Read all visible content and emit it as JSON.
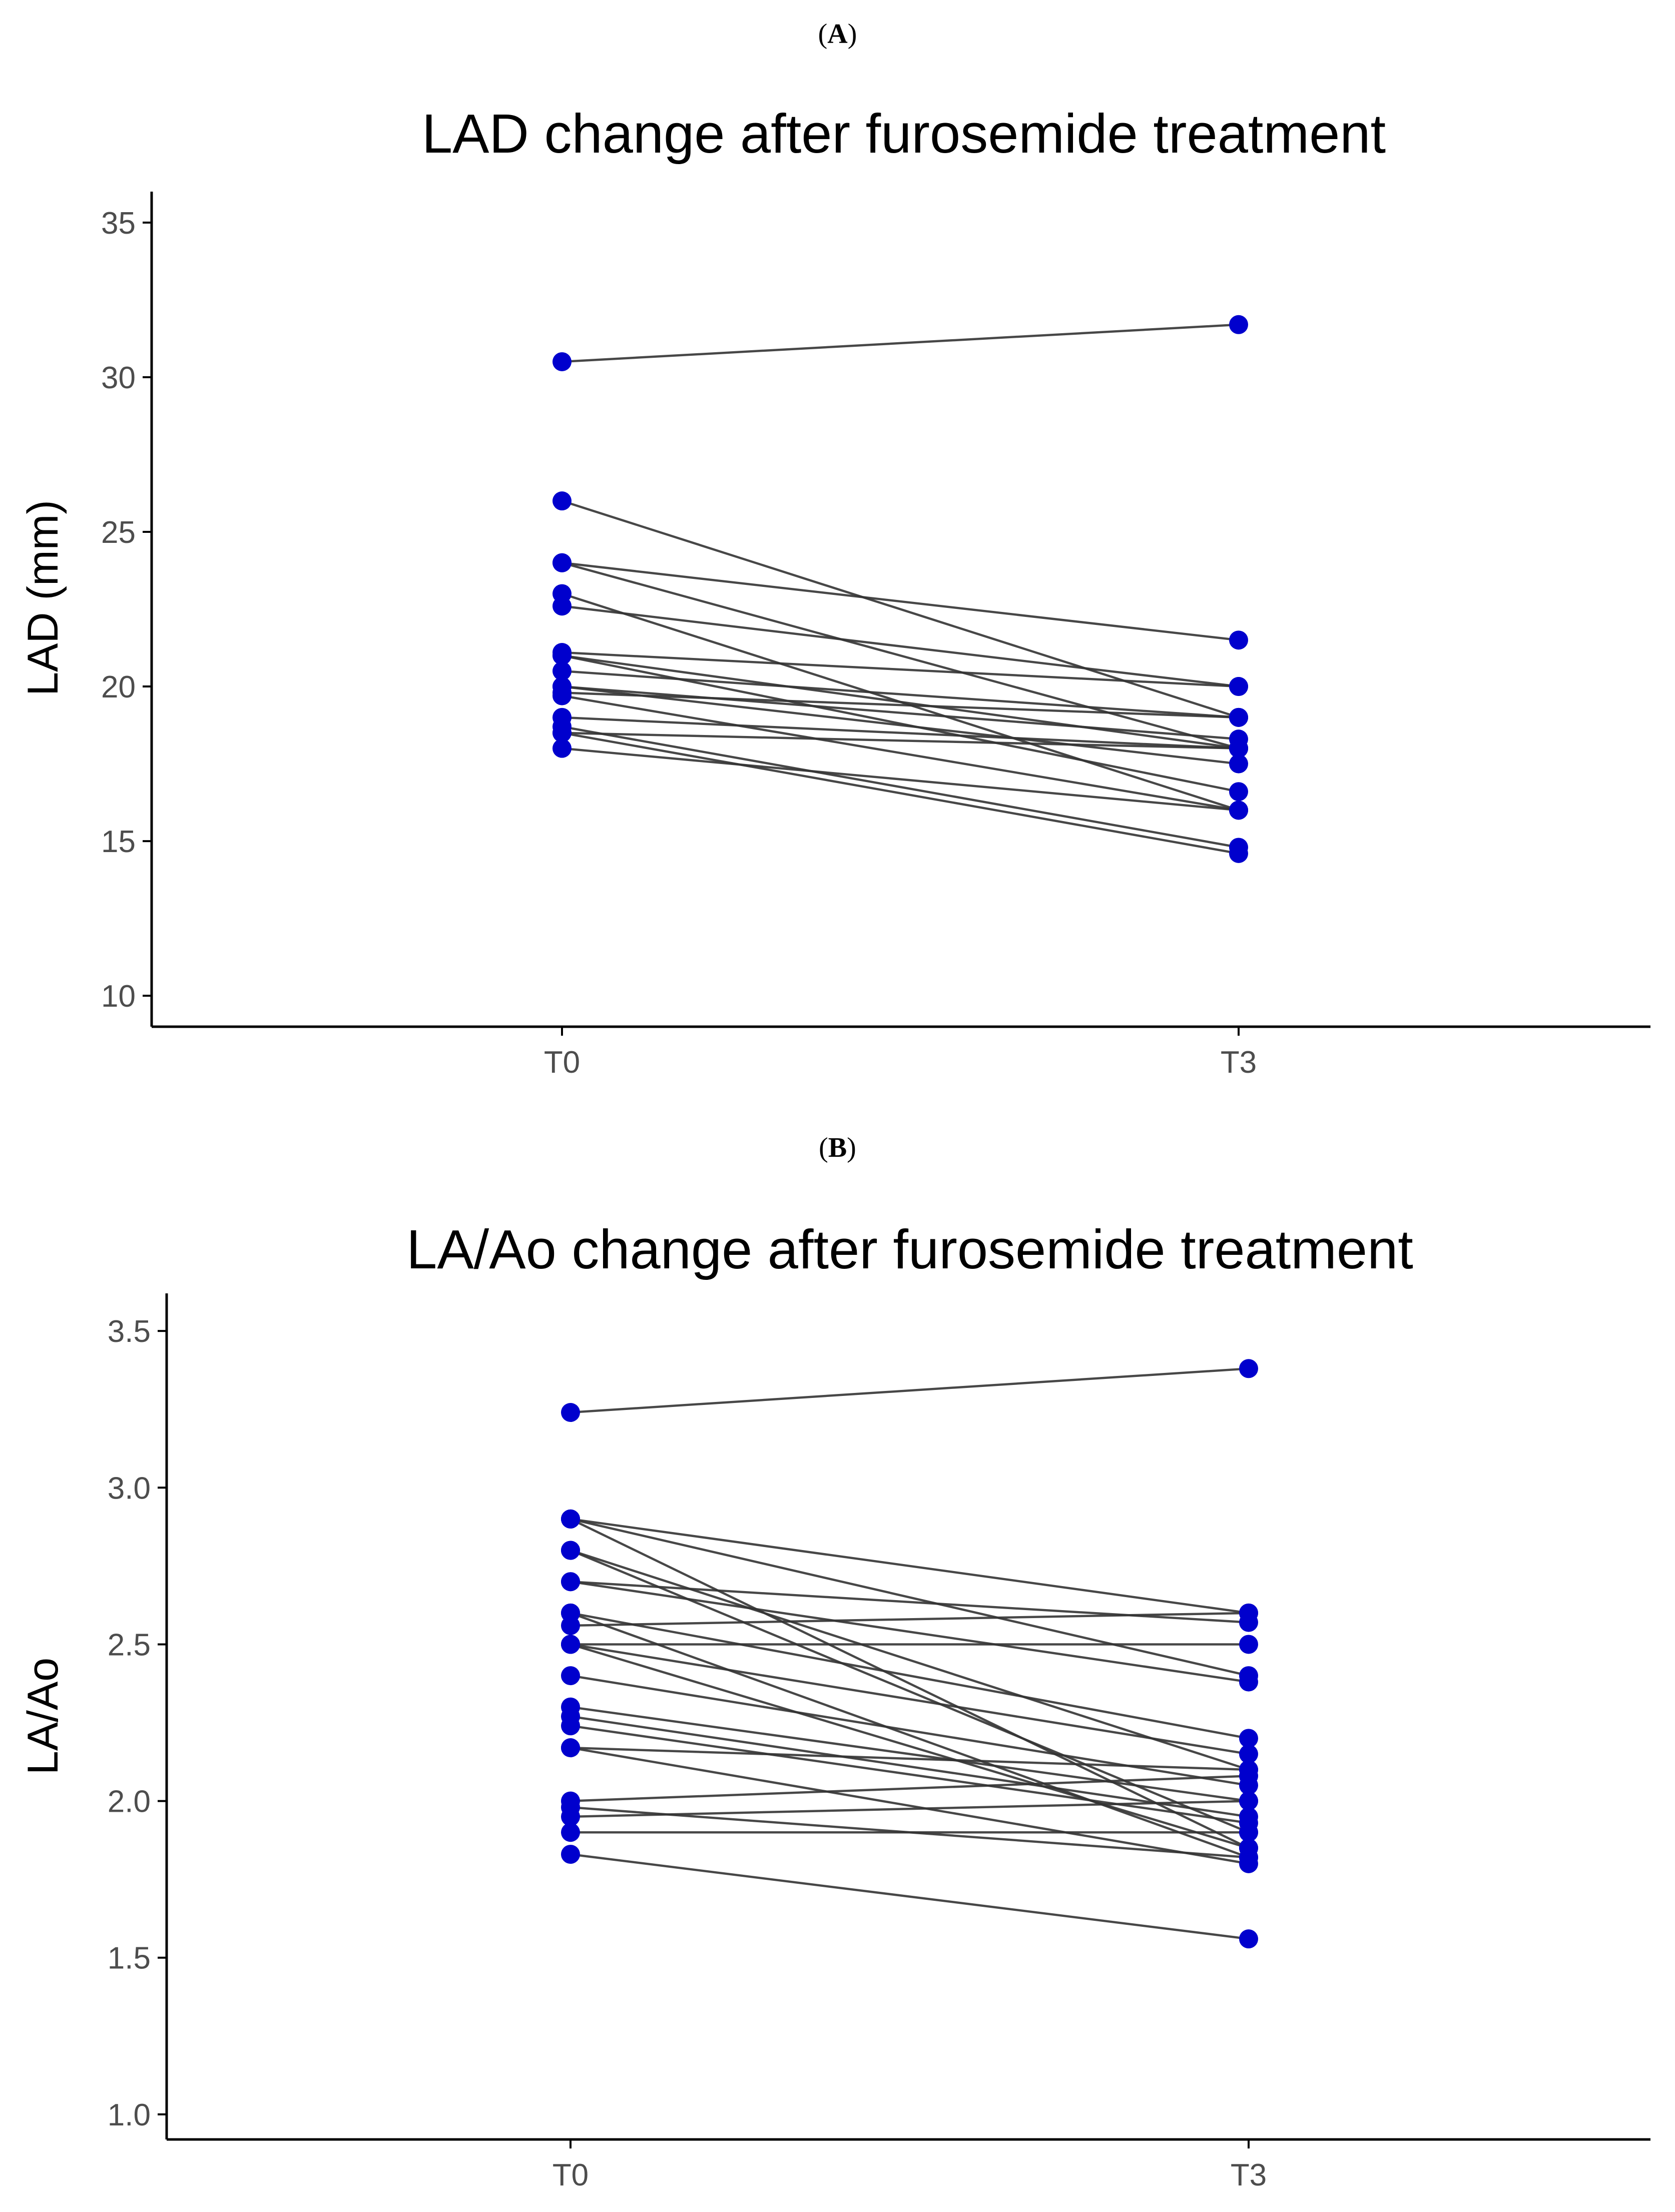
{
  "chart_data": [
    {
      "type": "line",
      "panel_label": "A",
      "title": "LAD change after furosemide treatment",
      "xlabel": "",
      "ylabel": "LAD (mm)",
      "categories": [
        "T0",
        "T3"
      ],
      "ylim": [
        9.0,
        36.0
      ],
      "yticks": [
        10,
        15,
        20,
        25,
        30,
        35
      ],
      "grid": false,
      "point_color": "#0000cd",
      "line_color": "#333333",
      "series": [
        {
          "name": "1",
          "values": [
            30.5,
            31.7
          ]
        },
        {
          "name": "2",
          "values": [
            26.0,
            19.0
          ]
        },
        {
          "name": "3",
          "values": [
            24.0,
            21.5
          ]
        },
        {
          "name": "4",
          "values": [
            24.0,
            18.0
          ]
        },
        {
          "name": "5",
          "values": [
            23.0,
            16.0
          ]
        },
        {
          "name": "6",
          "values": [
            22.6,
            20.0
          ]
        },
        {
          "name": "7",
          "values": [
            21.1,
            20.0
          ]
        },
        {
          "name": "8",
          "values": [
            21.0,
            18.0
          ]
        },
        {
          "name": "9",
          "values": [
            21.0,
            16.6
          ]
        },
        {
          "name": "10",
          "values": [
            20.5,
            19.0
          ]
        },
        {
          "name": "11",
          "values": [
            20.0,
            18.3
          ]
        },
        {
          "name": "12",
          "values": [
            20.0,
            17.5
          ]
        },
        {
          "name": "13",
          "values": [
            19.8,
            19.0
          ]
        },
        {
          "name": "14",
          "values": [
            19.7,
            16.0
          ]
        },
        {
          "name": "15",
          "values": [
            19.0,
            18.0
          ]
        },
        {
          "name": "16",
          "values": [
            18.7,
            14.8
          ]
        },
        {
          "name": "17",
          "values": [
            18.5,
            14.6
          ]
        },
        {
          "name": "18",
          "values": [
            18.5,
            18.0
          ]
        },
        {
          "name": "19",
          "values": [
            18.0,
            16.0
          ]
        }
      ]
    },
    {
      "type": "line",
      "panel_label": "B",
      "title": "LA/Ao change after furosemide treatment",
      "xlabel": "",
      "ylabel": "LA/Ao",
      "categories": [
        "T0",
        "T3"
      ],
      "ylim": [
        0.92,
        3.62
      ],
      "yticks": [
        1.0,
        1.5,
        2.0,
        2.5,
        3.0,
        3.5
      ],
      "ytick_labels": [
        "1.0",
        "1.5",
        "2.0",
        "2.5",
        "3.0",
        "3.5"
      ],
      "grid": false,
      "point_color": "#0000cd",
      "line_color": "#333333",
      "series": [
        {
          "name": "1",
          "values": [
            3.24,
            3.38
          ]
        },
        {
          "name": "2",
          "values": [
            2.9,
            2.6
          ]
        },
        {
          "name": "3",
          "values": [
            2.9,
            2.4
          ]
        },
        {
          "name": "4",
          "values": [
            2.9,
            1.85
          ]
        },
        {
          "name": "5",
          "values": [
            2.8,
            1.9
          ]
        },
        {
          "name": "6",
          "values": [
            2.8,
            2.1
          ]
        },
        {
          "name": "7",
          "values": [
            2.7,
            2.57
          ]
        },
        {
          "name": "8",
          "values": [
            2.7,
            2.38
          ]
        },
        {
          "name": "9",
          "values": [
            2.6,
            2.2
          ]
        },
        {
          "name": "10",
          "values": [
            2.6,
            1.82
          ]
        },
        {
          "name": "11",
          "values": [
            2.56,
            2.6
          ]
        },
        {
          "name": "12",
          "values": [
            2.5,
            2.5
          ]
        },
        {
          "name": "13",
          "values": [
            2.5,
            2.15
          ]
        },
        {
          "name": "14",
          "values": [
            2.5,
            1.85
          ]
        },
        {
          "name": "15",
          "values": [
            2.4,
            2.05
          ]
        },
        {
          "name": "16",
          "values": [
            2.3,
            2.0
          ]
        },
        {
          "name": "17",
          "values": [
            2.27,
            1.95
          ]
        },
        {
          "name": "18",
          "values": [
            2.24,
            1.93
          ]
        },
        {
          "name": "19",
          "values": [
            2.17,
            1.8
          ]
        },
        {
          "name": "20",
          "values": [
            2.17,
            2.1
          ]
        },
        {
          "name": "21",
          "values": [
            2.0,
            2.08
          ]
        },
        {
          "name": "22",
          "values": [
            1.98,
            1.82
          ]
        },
        {
          "name": "23",
          "values": [
            1.95,
            2.0
          ]
        },
        {
          "name": "24",
          "values": [
            1.9,
            1.9
          ]
        },
        {
          "name": "25",
          "values": [
            1.83,
            1.56
          ]
        }
      ]
    }
  ]
}
